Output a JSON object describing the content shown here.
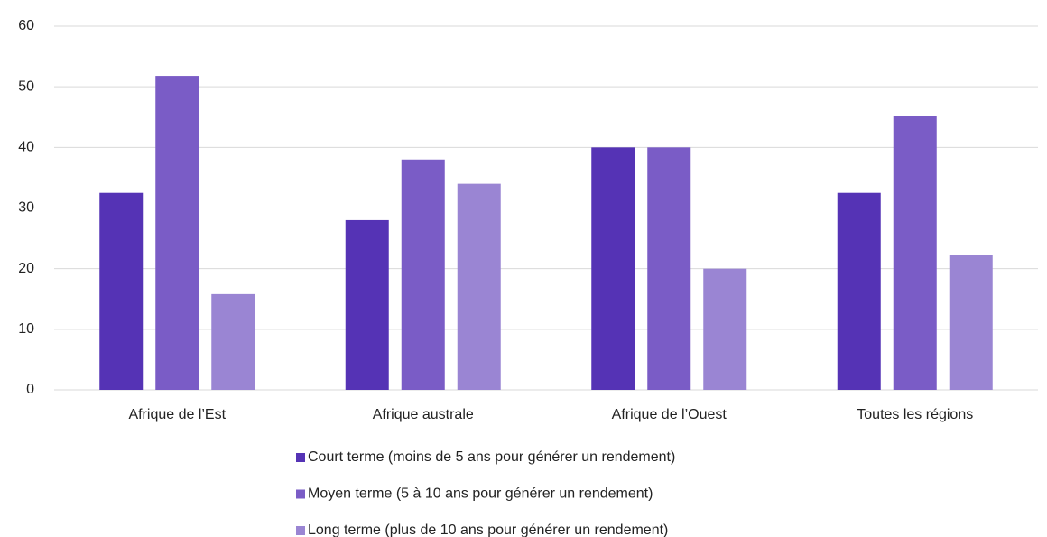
{
  "chart_data": {
    "type": "bar",
    "categories": [
      "Afrique de l’Est",
      "Afrique australe",
      "Afrique de l’Ouest",
      "Toutes les régions"
    ],
    "series": [
      {
        "name": "Court terme (moins de 5 ans pour générer un rendement)",
        "color": "#5533b5",
        "values": [
          32.5,
          28,
          40,
          32.5
        ]
      },
      {
        "name": "Moyen terme (5 à 10 ans pour générer un rendement)",
        "color": "#7a5cc6",
        "values": [
          51.8,
          38,
          40,
          45.2
        ]
      },
      {
        "name": "Long terme (plus de 10 ans pour générer un rendement)",
        "color": "#9a85d3",
        "values": [
          15.8,
          34,
          20,
          22.2
        ]
      }
    ],
    "ylim": [
      0,
      60
    ],
    "yticks": [
      0,
      10,
      20,
      30,
      40,
      50,
      60
    ],
    "grid": true
  }
}
